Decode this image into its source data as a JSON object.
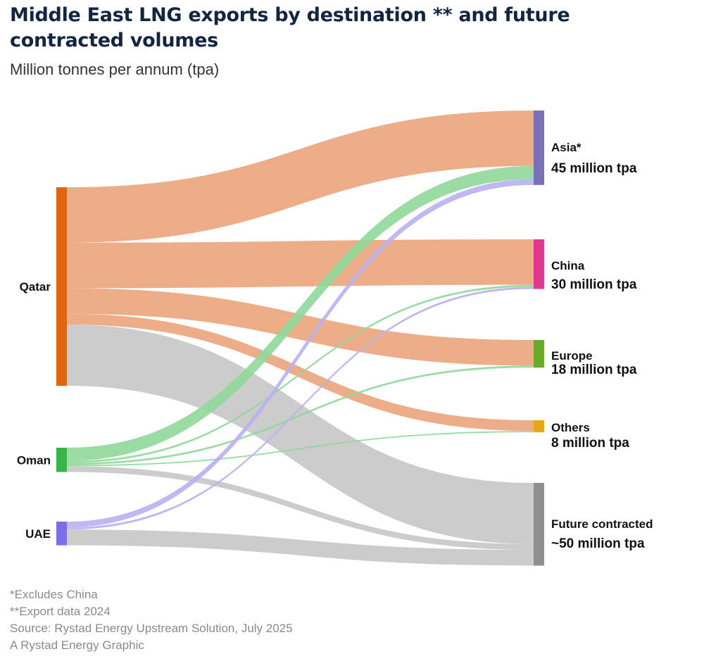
{
  "header": {
    "title_line1": "Middle East LNG exports by destination ** and future",
    "title_line2": "contracted volumes",
    "subtitle": "Million tonnes per annum (tpa)"
  },
  "footnotes": {
    "note1": "*Excludes China",
    "note2": "**Export data 2024",
    "source": "Source: Rystad Energy Upstream Solution, July 2025",
    "credit": "A Rystad Energy Graphic"
  },
  "chart_data": {
    "type": "sankey",
    "title": "Middle East LNG exports by destination ** and future contracted volumes",
    "unit": "Million tonnes per annum (tpa)",
    "sources": [
      {
        "id": "qatar",
        "label": "Qatar",
        "color": "#e0650f"
      },
      {
        "id": "oman",
        "label": "Oman",
        "color": "#38b44a"
      },
      {
        "id": "uae",
        "label": "UAE",
        "color": "#7b6ee6"
      }
    ],
    "targets": [
      {
        "id": "asia",
        "label": "Asia*",
        "value_label": "45 million tpa",
        "value": 45,
        "color": "#7b6fb8"
      },
      {
        "id": "china",
        "label": "China",
        "value_label": "30 million tpa",
        "value": 30,
        "color": "#e0388f"
      },
      {
        "id": "europe",
        "label": "Europe",
        "value_label": "18 million tpa",
        "value": 18,
        "color": "#6aaa2a"
      },
      {
        "id": "others",
        "label": "Others",
        "value_label": "8 million tpa",
        "value": 8,
        "color": "#e8a618"
      },
      {
        "id": "future",
        "label": "Future contracted",
        "value_label": "~50 million tpa",
        "value": 50,
        "color": "#8f8f8f"
      }
    ],
    "flows": [
      {
        "source": "qatar",
        "target": "asia",
        "value": 33.5,
        "color": "#eca47c"
      },
      {
        "source": "qatar",
        "target": "china",
        "value": 27.5,
        "color": "#eca47c"
      },
      {
        "source": "qatar",
        "target": "europe",
        "value": 15.5,
        "color": "#eca47c"
      },
      {
        "source": "qatar",
        "target": "others",
        "value": 6.5,
        "color": "#eca47c"
      },
      {
        "source": "qatar",
        "target": "future",
        "value": 37,
        "color": "#c9c9c9"
      },
      {
        "source": "oman",
        "target": "asia",
        "value": 8,
        "color": "#8fd89a"
      },
      {
        "source": "oman",
        "target": "china",
        "value": 1.2,
        "color": "#8fd89a"
      },
      {
        "source": "oman",
        "target": "europe",
        "value": 1.2,
        "color": "#8fd89a"
      },
      {
        "source": "oman",
        "target": "others",
        "value": 0.8,
        "color": "#8fd89a"
      },
      {
        "source": "oman",
        "target": "future",
        "value": 3.5,
        "color": "#c9c9c9"
      },
      {
        "source": "uae",
        "target": "asia",
        "value": 3.5,
        "color": "#b9b0f2"
      },
      {
        "source": "uae",
        "target": "china",
        "value": 1.3,
        "color": "#b9b0f2"
      },
      {
        "source": "uae",
        "target": "future",
        "value": 9.5,
        "color": "#c9c9c9"
      }
    ]
  }
}
